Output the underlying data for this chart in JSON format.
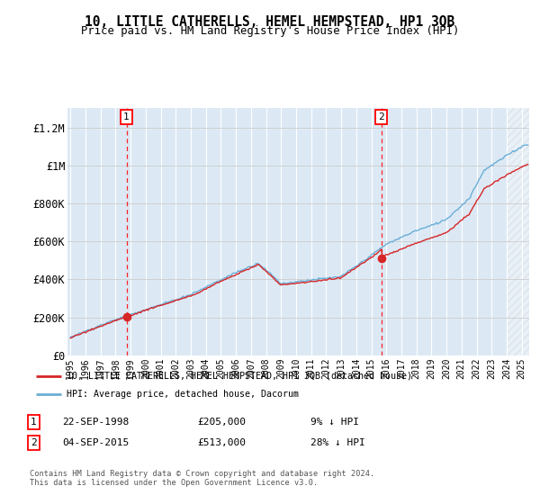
{
  "title": "10, LITTLE CATHERELLS, HEMEL HEMPSTEAD, HP1 3QB",
  "subtitle": "Price paid vs. HM Land Registry's House Price Index (HPI)",
  "legend_line1": "10, LITTLE CATHERELLS, HEMEL HEMPSTEAD, HP1 3QB (detached house)",
  "legend_line2": "HPI: Average price, detached house, Dacorum",
  "annotation1_label": "1",
  "annotation1_date": "22-SEP-1998",
  "annotation1_price": "£205,000",
  "annotation1_hpi": "9% ↓ HPI",
  "annotation2_label": "2",
  "annotation2_date": "04-SEP-2015",
  "annotation2_price": "£513,000",
  "annotation2_hpi": "28% ↓ HPI",
  "copyright_text": "Contains HM Land Registry data © Crown copyright and database right 2024.\nThis data is licensed under the Open Government Licence v3.0.",
  "sale1_year": 1998.72,
  "sale1_price": 205000,
  "sale2_year": 2015.67,
  "sale2_price": 513000,
  "hpi_color": "#6baed6",
  "price_color": "#d62728",
  "background_color": "#dce9f5",
  "ylim_top": 1300000,
  "xlim_start": 1994.8,
  "xlim_end": 2025.5,
  "yticks": [
    0,
    200000,
    400000,
    600000,
    800000,
    1000000,
    1200000
  ],
  "ytick_labels": [
    "£0",
    "£200K",
    "£400K",
    "£600K",
    "£800K",
    "£1M",
    "£1.2M"
  ]
}
